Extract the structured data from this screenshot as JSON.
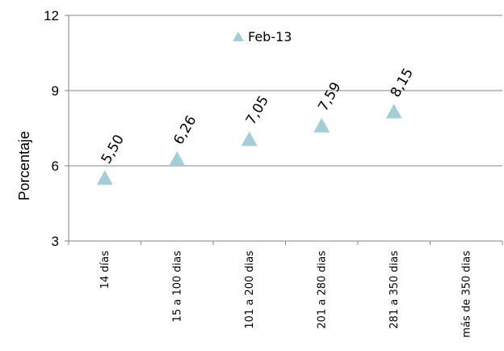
{
  "chart_data": {
    "type": "scatter",
    "categories": [
      "14 días",
      "15 a 100 dias",
      "101 a 200 dias",
      "201 a 280 dias",
      "281 a 350 dias",
      "más de  350 dias"
    ],
    "series": [
      {
        "name": "Feb-13",
        "values": [
          5.5,
          6.26,
          7.05,
          7.59,
          8.15,
          null
        ],
        "labels": [
          "5,50",
          "6,26",
          "7,05",
          "7,59",
          "8,15",
          ""
        ],
        "color": "#a5cdd9",
        "marker": "triangle"
      }
    ],
    "ylabel": "Porcentaje",
    "xlabel": "",
    "ylim": [
      3,
      12
    ],
    "yticks": [
      3,
      6,
      9,
      12
    ],
    "ytick_labels": [
      "3",
      "6",
      "9",
      "12"
    ],
    "grid": true,
    "grid_color": "#868686",
    "legend": "top-center"
  }
}
